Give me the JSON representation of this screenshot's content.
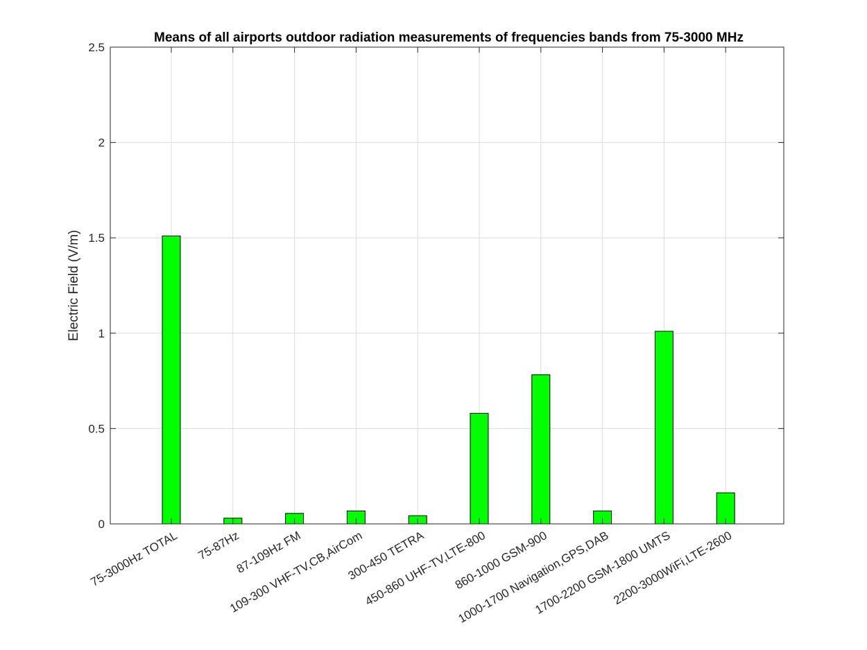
{
  "chart_data": {
    "type": "bar",
    "title": "Means of all airports outdoor radiation measurements of frequencies bands from 75-3000 MHz",
    "xlabel": "",
    "ylabel": "Electric Field (V/m)",
    "ylim": [
      0,
      2.5
    ],
    "yticks": [
      "0",
      "0.5",
      "1",
      "1.5",
      "2",
      "2.5"
    ],
    "grid": true,
    "bar_color": "#00ff00",
    "categories": [
      "75-3000Hz TOTAL",
      "75-87Hz",
      "87-109Hz FM",
      "109-300 VHF-TV,CB,AirCom",
      "300-450 TETRA",
      "450-860 UHF-TV,LTE-800",
      "860-1000 GSM-900",
      "1000-1700 Navigation,GPS,DAB",
      "1700-2200 GSM-1800 UMTS",
      "2200-3000WiFi,LTE-2600"
    ],
    "values": [
      1.51,
      0.03,
      0.055,
      0.068,
      0.043,
      0.58,
      0.782,
      0.068,
      1.01,
      0.163
    ]
  }
}
